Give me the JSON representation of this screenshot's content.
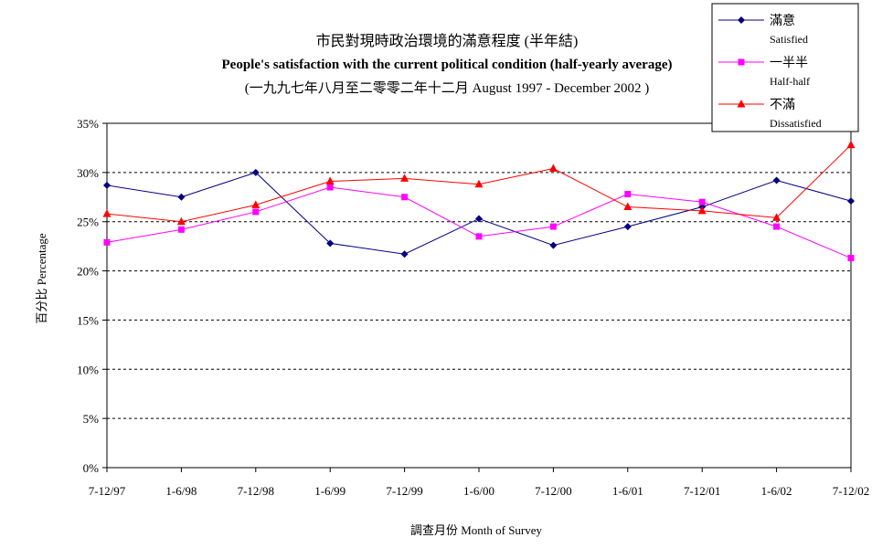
{
  "chart_data": {
    "type": "line",
    "title": "市民對現時政治環境的滿意程度 (半年結)",
    "subtitle": "People's satisfaction with the current political condition (half-yearly average)",
    "subtitle2": "(一九九七年八月至二零零二年十二月 August 1997 - December 2002 )",
    "xlabel": "調查月份 Month of Survey",
    "ylabel": "百分比 Percentage",
    "categories": [
      "7-12/97",
      "1-6/98",
      "7-12/98",
      "1-6/99",
      "7-12/99",
      "1-6/00",
      "7-12/00",
      "1-6/01",
      "7-12/01",
      "1-6/02",
      "7-12/02"
    ],
    "ylim": [
      0,
      35
    ],
    "yticks": [
      0,
      5,
      10,
      15,
      20,
      25,
      30,
      35
    ],
    "ytick_labels": [
      "0%",
      "5%",
      "10%",
      "15%",
      "20%",
      "25%",
      "30%",
      "35%"
    ],
    "grid": true,
    "legend_position": "top-right",
    "series": [
      {
        "name": "滿意",
        "name_en": "Satisfied",
        "color": "#000080",
        "marker": "diamond",
        "values": [
          28.7,
          27.5,
          30.0,
          22.8,
          21.7,
          25.3,
          22.6,
          24.5,
          26.5,
          29.2,
          27.1
        ]
      },
      {
        "name": "一半半",
        "name_en": "Half-half",
        "color": "#ff00ff",
        "marker": "square",
        "values": [
          22.9,
          24.2,
          26.0,
          28.5,
          27.5,
          23.5,
          24.5,
          27.8,
          27.0,
          24.5,
          21.3
        ]
      },
      {
        "name": "不滿",
        "name_en": "Dissatisfied",
        "color": "#ff0000",
        "marker": "triangle",
        "values": [
          25.8,
          25.0,
          26.7,
          29.1,
          29.4,
          28.8,
          30.4,
          26.5,
          26.1,
          25.4,
          32.8
        ]
      }
    ]
  }
}
